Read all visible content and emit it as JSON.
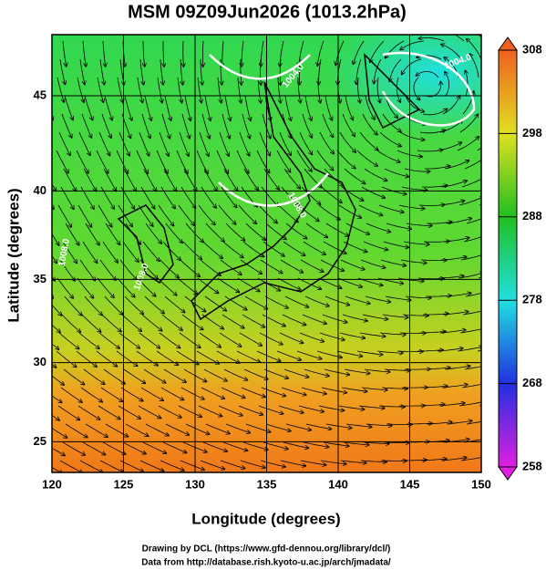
{
  "chart_data": {
    "type": "map",
    "title": "MSM 09Z09Jun2026 (1013.2hPa)",
    "x_label": "Longitude (degrees)",
    "y_label": "Latitude  (degrees)",
    "xlim": [
      120,
      150
    ],
    "ylim": [
      23,
      48
    ],
    "xticks": [
      120,
      125,
      130,
      135,
      140,
      145,
      150
    ],
    "yticks": [
      25,
      30,
      35,
      40,
      45
    ],
    "projection": "mercator",
    "grid": true,
    "colorbar": {
      "lim": [
        258,
        308
      ],
      "ticks": [
        258,
        268,
        278,
        288,
        298,
        308
      ],
      "colors": [
        "#e020e0",
        "#2030e0",
        "#20e0e0",
        "#20c020",
        "#e0e020",
        "#f06020"
      ]
    },
    "contour_labels": [
      "1004.0",
      "1008.0",
      "1008.0",
      "1008.0",
      "1004.0"
    ]
  },
  "credits": [
    "Drawing by DCL (https://www.gfd-dennou.org/library/dcl/)",
    "Data from http://database.rish.kyoto-u.ac.jp/arch/jmadata/"
  ]
}
